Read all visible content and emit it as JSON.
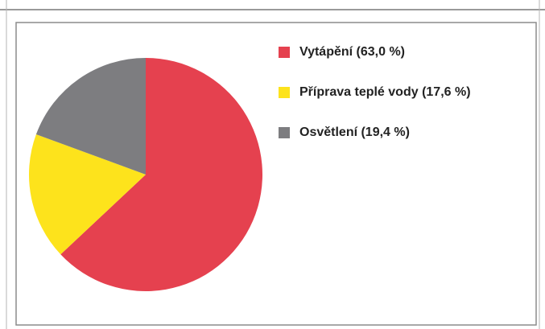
{
  "chart_data": {
    "type": "pie",
    "categories": [
      "Vytápění (63,0 %)",
      "Příprava teplé vody (17,6 %)",
      "Osvětlení (19,4 %)"
    ],
    "values": [
      63.0,
      17.6,
      19.4
    ],
    "colors": [
      "#e5414f",
      "#fde31c",
      "#7d7d80"
    ],
    "legend": "right"
  }
}
